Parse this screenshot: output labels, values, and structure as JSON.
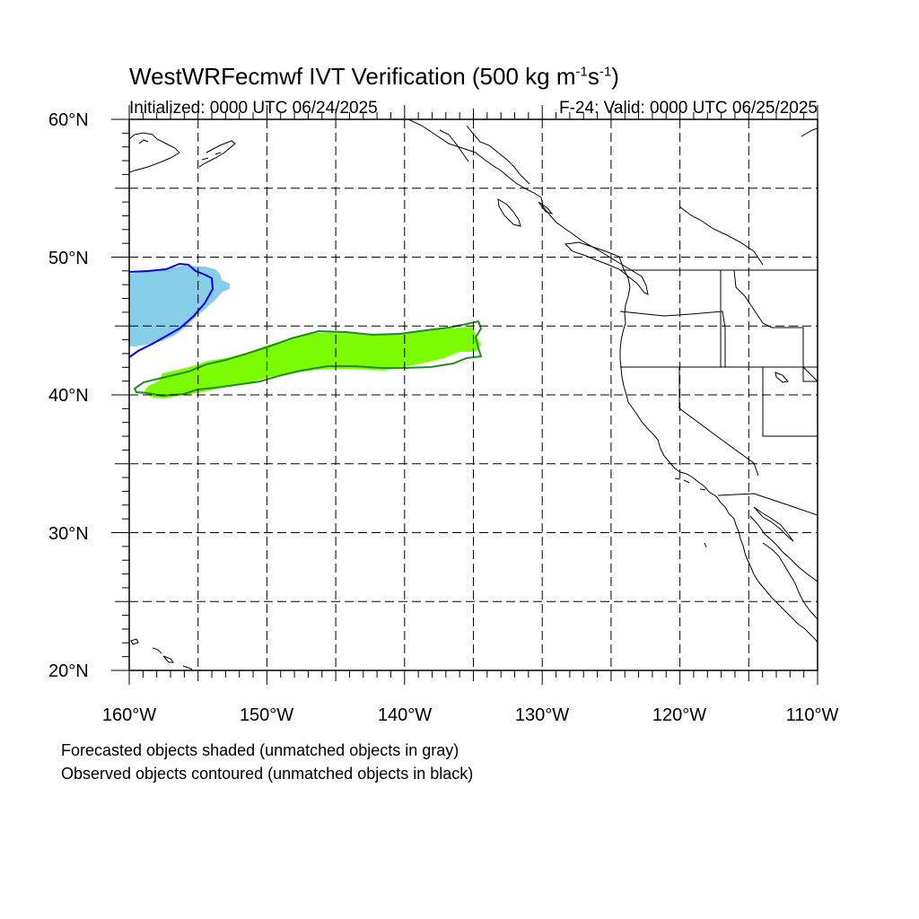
{
  "title": {
    "main": "WestWRFecmwf IVT Verification (500 kg m",
    "exp1": "-1",
    "mid": "s",
    "exp2": "-1",
    "close": ")"
  },
  "subtitle_left": "Initialized: 0000 UTC 06/24/2025",
  "subtitle_right": "F-24: Valid: 0000 UTC 06/25/2025",
  "map": {
    "lon_range": [
      -160,
      -110
    ],
    "lat_range": [
      20,
      60
    ],
    "lat_labels": [
      "60°N",
      "50°N",
      "40°N",
      "30°N",
      "20°N"
    ],
    "lon_labels": [
      "160°W",
      "150°W",
      "140°W",
      "130°W",
      "120°W",
      "110°W"
    ],
    "grid": "dashed every 5°",
    "colors": {
      "forecast_object_1": "#87ceeb",
      "observed_contour_1": "#0000ee",
      "forecast_object_2": "#7cfc00",
      "observed_contour_2": "#228b22",
      "coastline": "#000000"
    }
  },
  "notes": [
    "Forecasted objects shaded (unmatched objects in gray)",
    "Observed objects contoured (unmatched objects in black)"
  ]
}
